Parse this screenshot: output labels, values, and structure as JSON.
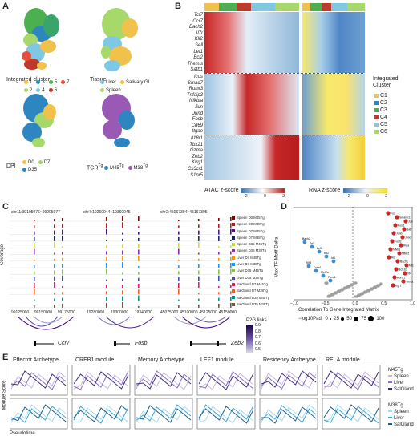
{
  "panels": {
    "a": {
      "label": "A",
      "umaps": [
        {
          "title": "Integrated cluster",
          "legend": [
            {
              "text": "1",
              "color": "#f0c24b"
            },
            {
              "text": "3",
              "color": "#2e86c1"
            },
            {
              "text": "5",
              "color": "#4caf50"
            },
            {
              "text": "7",
              "color": "#e74c3c"
            },
            {
              "text": "2",
              "color": "#a6d96a"
            },
            {
              "text": "4",
              "color": "#7ec8e3"
            },
            {
              "text": "6",
              "color": "#c0392b"
            }
          ]
        },
        {
          "title": "Tissue",
          "legend": [
            {
              "text": "Liver",
              "color": "#7ec8e3"
            },
            {
              "text": "Salivary Gl.",
              "color": "#f0c24b"
            },
            {
              "text": "Spleen",
              "color": "#a6d96a"
            }
          ]
        },
        {
          "title": "DPI",
          "legend": [
            {
              "text": "D0",
              "color": "#f0c24b"
            },
            {
              "text": "D7",
              "color": "#a6d96a"
            },
            {
              "text": "D35",
              "color": "#2e86c1"
            }
          ]
        },
        {
          "title": "TCR",
          "sup": "Tg",
          "legend": [
            {
              "text": "M45",
              "color": "#2e86c1",
              "sup": "Tg"
            },
            {
              "text": "M38",
              "color": "#9b59b6",
              "sup": "Tg"
            }
          ]
        }
      ]
    },
    "b": {
      "label": "B",
      "genes_top": [
        "Tcf7",
        "Ccr7",
        "Bach2",
        "Il7r",
        "Klf2",
        "Sell",
        "Lef1",
        "Bcl2",
        "Themis",
        "Satb1"
      ],
      "genes_mid": [
        "Icos",
        "Smad7",
        "Runx3",
        "Tnfaip3",
        "Nfkbia",
        "Jun",
        "Jund",
        "Fosb",
        "Cd69",
        "Itgae"
      ],
      "genes_bot": [
        "Il18r1",
        "Tbx21",
        "Gzma",
        "Zeb2",
        "Klrg1",
        "Cx3cr1",
        "S1pr5"
      ],
      "legend_title": "Integrated\nCluster",
      "clusters": [
        {
          "text": "C1",
          "color": "#f0c24b"
        },
        {
          "text": "C2",
          "color": "#2e86c1"
        },
        {
          "text": "C3",
          "color": "#4caf50"
        },
        {
          "text": "C4",
          "color": "#c0392b"
        },
        {
          "text": "C5",
          "color": "#7ec8e3"
        },
        {
          "text": "C6",
          "color": "#a6d96a"
        }
      ],
      "atac_label": "ATAC z-score",
      "rna_label": "RNA z-score",
      "scale_ticks": [
        "−2",
        "0",
        "2"
      ]
    },
    "c": {
      "label": "C",
      "regions": [
        "chr11:99105076~99205077",
        "chr7:19260044~19360045",
        "chr2:45067394~45167395"
      ],
      "y_label": "Coverage",
      "tracks": [
        {
          "name": "Spleen D0 M45Tg",
          "color": "#8b0000"
        },
        {
          "name": "Spleen D0 M38Tg",
          "color": "#b22222"
        },
        {
          "name": "Spleen D7 M45Tg",
          "color": "#4a148c"
        },
        {
          "name": "Spleen D7 M38Tg",
          "color": "#1a237e"
        },
        {
          "name": "Spleen D35 M45Tg",
          "color": "#cddc39"
        },
        {
          "name": "Spleen D35 M38Tg",
          "color": "#9c27b0"
        },
        {
          "name": "Liver D7 M45Tg",
          "color": "#ff9800"
        },
        {
          "name": "Liver D7 M38Tg",
          "color": "#2196f3"
        },
        {
          "name": "Liver D35 M45Tg",
          "color": "#8bc34a"
        },
        {
          "name": "Liver D35 M38Tg",
          "color": "#3f51b5"
        },
        {
          "name": "SalGland D7 M45Tg",
          "color": "#e91e63"
        },
        {
          "name": "SalGland D7 M38Tg",
          "color": "#ff5722"
        },
        {
          "name": "SalGland D35 M45Tg",
          "color": "#009688"
        },
        {
          "name": "SalGland D35 M38Tg",
          "color": "#795548"
        }
      ],
      "ticks1": [
        "99125000",
        "99150000",
        "99175000"
      ],
      "ticks2": [
        "19280000",
        "19300000",
        "19340000"
      ],
      "ticks3": [
        "45075000",
        "45100000",
        "45125000",
        "45150000"
      ],
      "genes": [
        "Ccr7",
        "Fosb",
        "Zeb2"
      ],
      "p2g_title": "P2G links",
      "p2g_ticks": [
        "0.9",
        "0.8",
        "0.7",
        "0.6",
        "0.5"
      ]
    },
    "d": {
      "label": "D",
      "xlabel": "Correlation To Gene Integrated Matrix",
      "ylabel": "Max TF Motif Delta",
      "size_title": "−log10Padj",
      "size_ticks": [
        "0",
        "25",
        "50",
        "75",
        "100"
      ],
      "x_ticks": [
        "−1.0",
        "−0.5",
        "0.0",
        "0.5",
        "1.0"
      ],
      "y_ticks": [
        "0",
        "1",
        "2",
        "3",
        "4"
      ],
      "red_labels": [
        "Fos",
        "Smarcc1",
        "Jun",
        "Fosl1",
        "Batf",
        "Junb",
        "Jund",
        "Fosl2",
        "Rela",
        "Nfkb1",
        "Nfkb2",
        "Rel",
        "Bach1",
        "Nfe2",
        "Bcl11b",
        "Irf4",
        "Runx1",
        "Tbx21",
        "Egr1"
      ],
      "blue_labels": [
        "Bach2",
        "Tcf7",
        "Lef1",
        "Klf2",
        "Id3",
        "Klf3",
        "Creb1",
        "Mef2a",
        "Foxo1"
      ]
    },
    "e": {
      "label": "E",
      "titles": [
        "Effector Archetype",
        "CREB1 module",
        "Memory Archetype",
        "LEF1 module",
        "Residency Archetype",
        "RELA module"
      ],
      "ylabel": "Module Score",
      "xlabel": "Pseudotime",
      "legend1_title": "M45Tg",
      "legend2_title": "M38Tg",
      "tissues": [
        "Spleen",
        "Liver",
        "SalGland"
      ]
    }
  }
}
